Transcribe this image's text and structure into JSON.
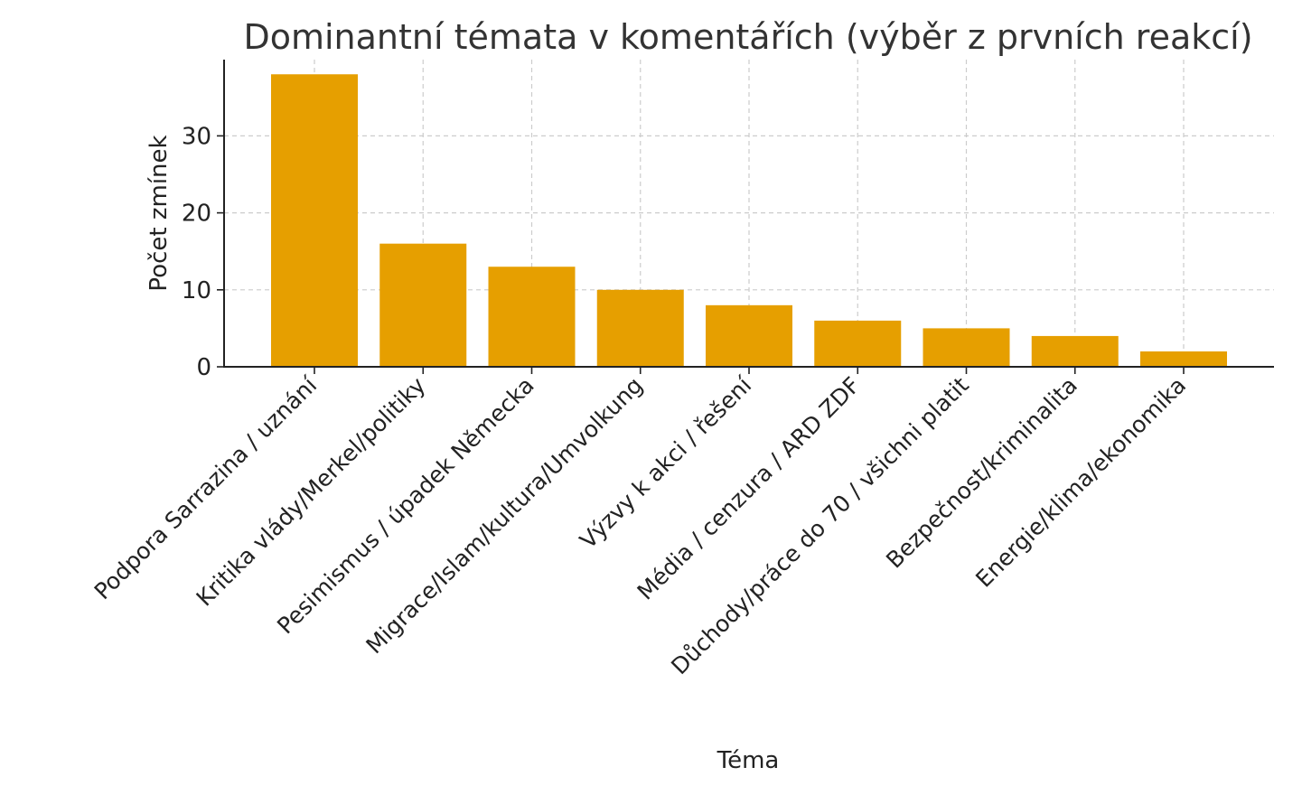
{
  "chart_data": {
    "type": "bar",
    "title": "Dominantní témata v komentářích (výběr z prvních reakcí)",
    "xlabel": "Téma",
    "ylabel": "Počet zmínek",
    "categories": [
      "Podpora Sarrazina / uznání",
      "Kritika vlády/Merkel/politiky",
      "Pesimismus / úpadek Německa",
      "Migrace/Islam/kultura/Umvolkung",
      "Výzvy k akci / řešení",
      "Média / cenzura / ARD ZDF",
      "Důchody/práce do 70 / všichni platit",
      "Bezpečnost/kriminalita",
      "Energie/klima/ekonomika"
    ],
    "values": [
      38,
      16,
      13,
      10,
      8,
      6,
      5,
      4,
      2
    ],
    "yticks": [
      "0",
      "10",
      "20",
      "30"
    ],
    "ylim": [
      0,
      40
    ],
    "grid": true,
    "bar_color": "#e69f00"
  }
}
